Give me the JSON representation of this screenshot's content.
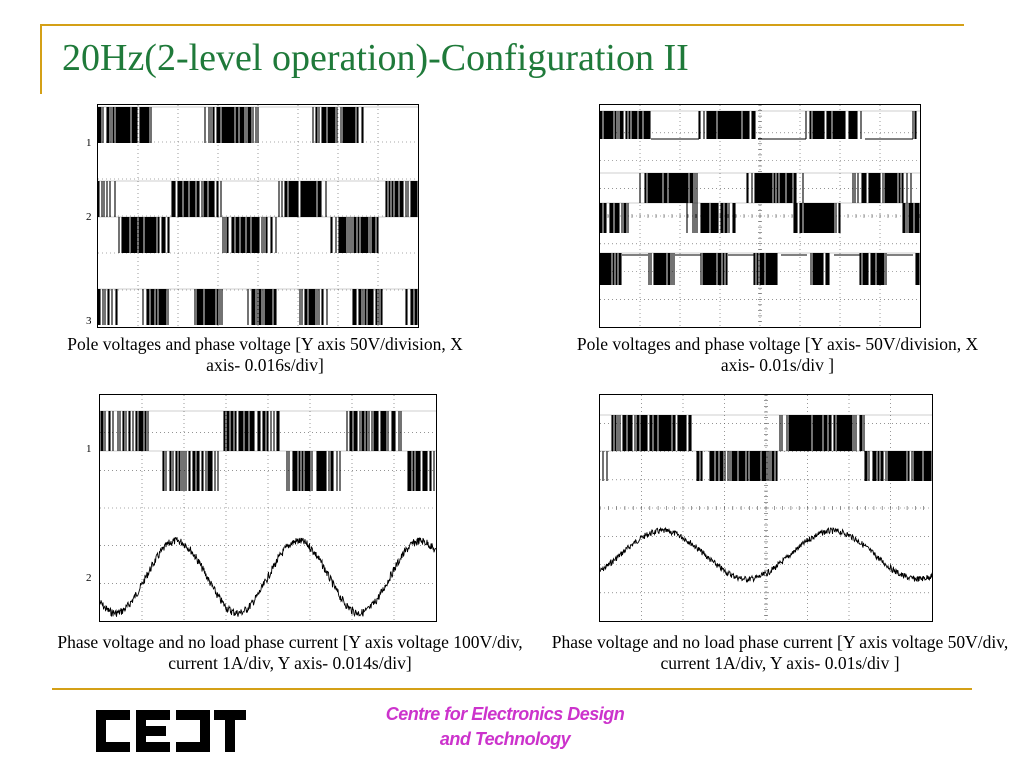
{
  "title": "20Hz(2-level operation)-Configuration II",
  "captions": {
    "top_left": "Pole voltages and phase voltage [Y axis 50V/division, X axis- 0.016s/div]",
    "top_right": "Pole voltages and phase voltage [Y axis- 50V/division, X axis- 0.01s/div ]",
    "bottom_left": "Phase voltage and no load phase current [Y axis voltage 100V/div, current 1A/div, Y axis- 0.014s/div]",
    "bottom_right": "Phase voltage and no load phase current  [Y axis voltage 50V/div, current 1A/div, Y axis- 0.01s/div ]"
  },
  "channel_labels": {
    "tl": [
      "1",
      "2",
      "3"
    ],
    "bl": [
      "1",
      "2"
    ]
  },
  "footer": {
    "logo_alt": "CEDT",
    "brand_line1": "Centre for Electronics Design",
    "brand_line2": "and Technology"
  },
  "colors": {
    "title": "#1f7a3a",
    "rule": "#d4a017",
    "brand": "#cc33cc"
  }
}
